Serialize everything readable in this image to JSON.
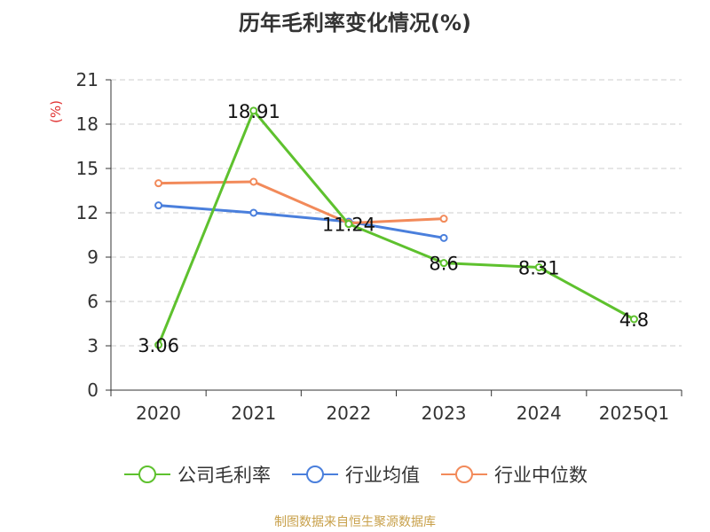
{
  "chart_data": {
    "type": "line",
    "title": "历年毛利率变化情况(%)",
    "ylabel": "(%)",
    "categories": [
      "2020",
      "2021",
      "2022",
      "2023",
      "2024",
      "2025Q1"
    ],
    "ylim": [
      0,
      21
    ],
    "yticks": [
      0,
      3,
      6,
      9,
      12,
      15,
      18,
      21
    ],
    "grid": true,
    "legend_position": "bottom",
    "series": [
      {
        "name": "公司毛利率",
        "color": "#5ec12e",
        "values": [
          3.06,
          18.91,
          11.24,
          8.6,
          8.31,
          4.8
        ],
        "labels": [
          "3.06",
          "18.91",
          "11.24",
          "8.6",
          "8.31",
          "4.8"
        ]
      },
      {
        "name": "行业均值",
        "color": "#4a7fdc",
        "values": [
          12.5,
          12.0,
          11.4,
          10.3,
          null,
          null
        ]
      },
      {
        "name": "行业中位数",
        "color": "#f28a5a",
        "values": [
          14.0,
          14.1,
          11.3,
          11.6,
          null,
          null
        ]
      }
    ]
  },
  "source": "制图数据来自恒生聚源数据库"
}
